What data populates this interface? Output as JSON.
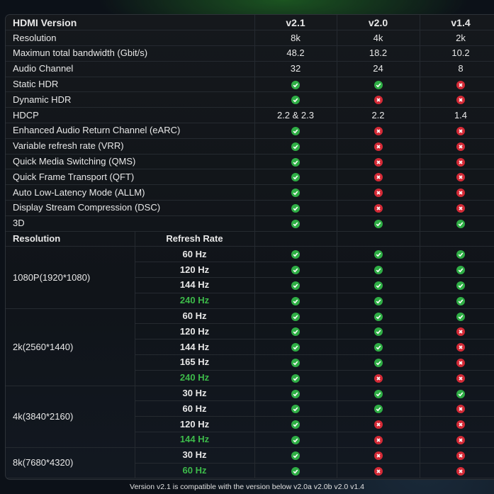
{
  "header": {
    "label": "HDMI Version",
    "versions": [
      "v2.1",
      "v2.0",
      "v1.4"
    ]
  },
  "features": [
    {
      "label": "Resolution",
      "values": [
        "8k",
        "4k",
        "2k"
      ]
    },
    {
      "label": "Maximun total bandwidth (Gbit/s)",
      "values": [
        "48.2",
        "18.2",
        "10.2"
      ]
    },
    {
      "label": "Audio Channel",
      "values": [
        "32",
        "24",
        "8"
      ]
    },
    {
      "label": "Static HDR",
      "values": [
        "yes",
        "yes",
        "no"
      ]
    },
    {
      "label": "Dynamic HDR",
      "values": [
        "yes",
        "no",
        "no"
      ]
    },
    {
      "label": "HDCP",
      "values": [
        "2.2 & 2.3",
        "2.2",
        "1.4"
      ]
    },
    {
      "label": "Enhanced Audio Return Channel (eARC)",
      "values": [
        "yes",
        "no",
        "no"
      ]
    },
    {
      "label": "Variable refresh rate (VRR)",
      "values": [
        "yes",
        "no",
        "no"
      ]
    },
    {
      "label": "Quick Media Switching (QMS)",
      "values": [
        "yes",
        "no",
        "no"
      ]
    },
    {
      "label": "Quick Frame Transport (QFT)",
      "values": [
        "yes",
        "no",
        "no"
      ]
    },
    {
      "label": "Auto Low-Latency Mode (ALLM)",
      "values": [
        "yes",
        "no",
        "no"
      ]
    },
    {
      "label": "Display Stream Compression (DSC)",
      "values": [
        "yes",
        "no",
        "no"
      ]
    },
    {
      "label": "3D",
      "values": [
        "yes",
        "yes",
        "yes"
      ]
    }
  ],
  "subheader": {
    "resolution": "Resolution",
    "refresh_rate": "Refresh Rate"
  },
  "resolutions": [
    {
      "label": "1080P(1920*1080)",
      "rates": [
        {
          "rate": "60 Hz",
          "highlight": false,
          "values": [
            "yes",
            "yes",
            "yes"
          ]
        },
        {
          "rate": "120 Hz",
          "highlight": false,
          "values": [
            "yes",
            "yes",
            "yes"
          ]
        },
        {
          "rate": "144 Hz",
          "highlight": false,
          "values": [
            "yes",
            "yes",
            "yes"
          ]
        },
        {
          "rate": "240 Hz",
          "highlight": true,
          "values": [
            "yes",
            "yes",
            "yes"
          ]
        }
      ]
    },
    {
      "label": "2k(2560*1440)",
      "rates": [
        {
          "rate": "60 Hz",
          "highlight": false,
          "values": [
            "yes",
            "yes",
            "yes"
          ]
        },
        {
          "rate": "120 Hz",
          "highlight": false,
          "values": [
            "yes",
            "yes",
            "no"
          ]
        },
        {
          "rate": "144 Hz",
          "highlight": false,
          "values": [
            "yes",
            "yes",
            "no"
          ]
        },
        {
          "rate": "165 Hz",
          "highlight": false,
          "values": [
            "yes",
            "yes",
            "no"
          ]
        },
        {
          "rate": "240 Hz",
          "highlight": true,
          "values": [
            "yes",
            "no",
            "no"
          ]
        }
      ]
    },
    {
      "label": "4k(3840*2160)",
      "rates": [
        {
          "rate": "30 Hz",
          "highlight": false,
          "values": [
            "yes",
            "yes",
            "yes"
          ]
        },
        {
          "rate": "60 Hz",
          "highlight": false,
          "values": [
            "yes",
            "yes",
            "no"
          ]
        },
        {
          "rate": "120 Hz",
          "highlight": false,
          "values": [
            "yes",
            "no",
            "no"
          ]
        },
        {
          "rate": "144 Hz",
          "highlight": true,
          "values": [
            "yes",
            "no",
            "no"
          ]
        }
      ]
    },
    {
      "label": "8k(7680*4320)",
      "rates": [
        {
          "rate": "30 Hz",
          "highlight": false,
          "values": [
            "yes",
            "no",
            "no"
          ]
        },
        {
          "rate": "60 Hz",
          "highlight": true,
          "values": [
            "yes",
            "no",
            "no"
          ]
        }
      ]
    }
  ],
  "footer": "Version v2.1 is compatible with the version below v2.0a v2.0b v2.0 v1.4",
  "colors": {
    "yes": "#2fae45",
    "no": "#d42a36",
    "highlight": "#3dbb4a"
  }
}
